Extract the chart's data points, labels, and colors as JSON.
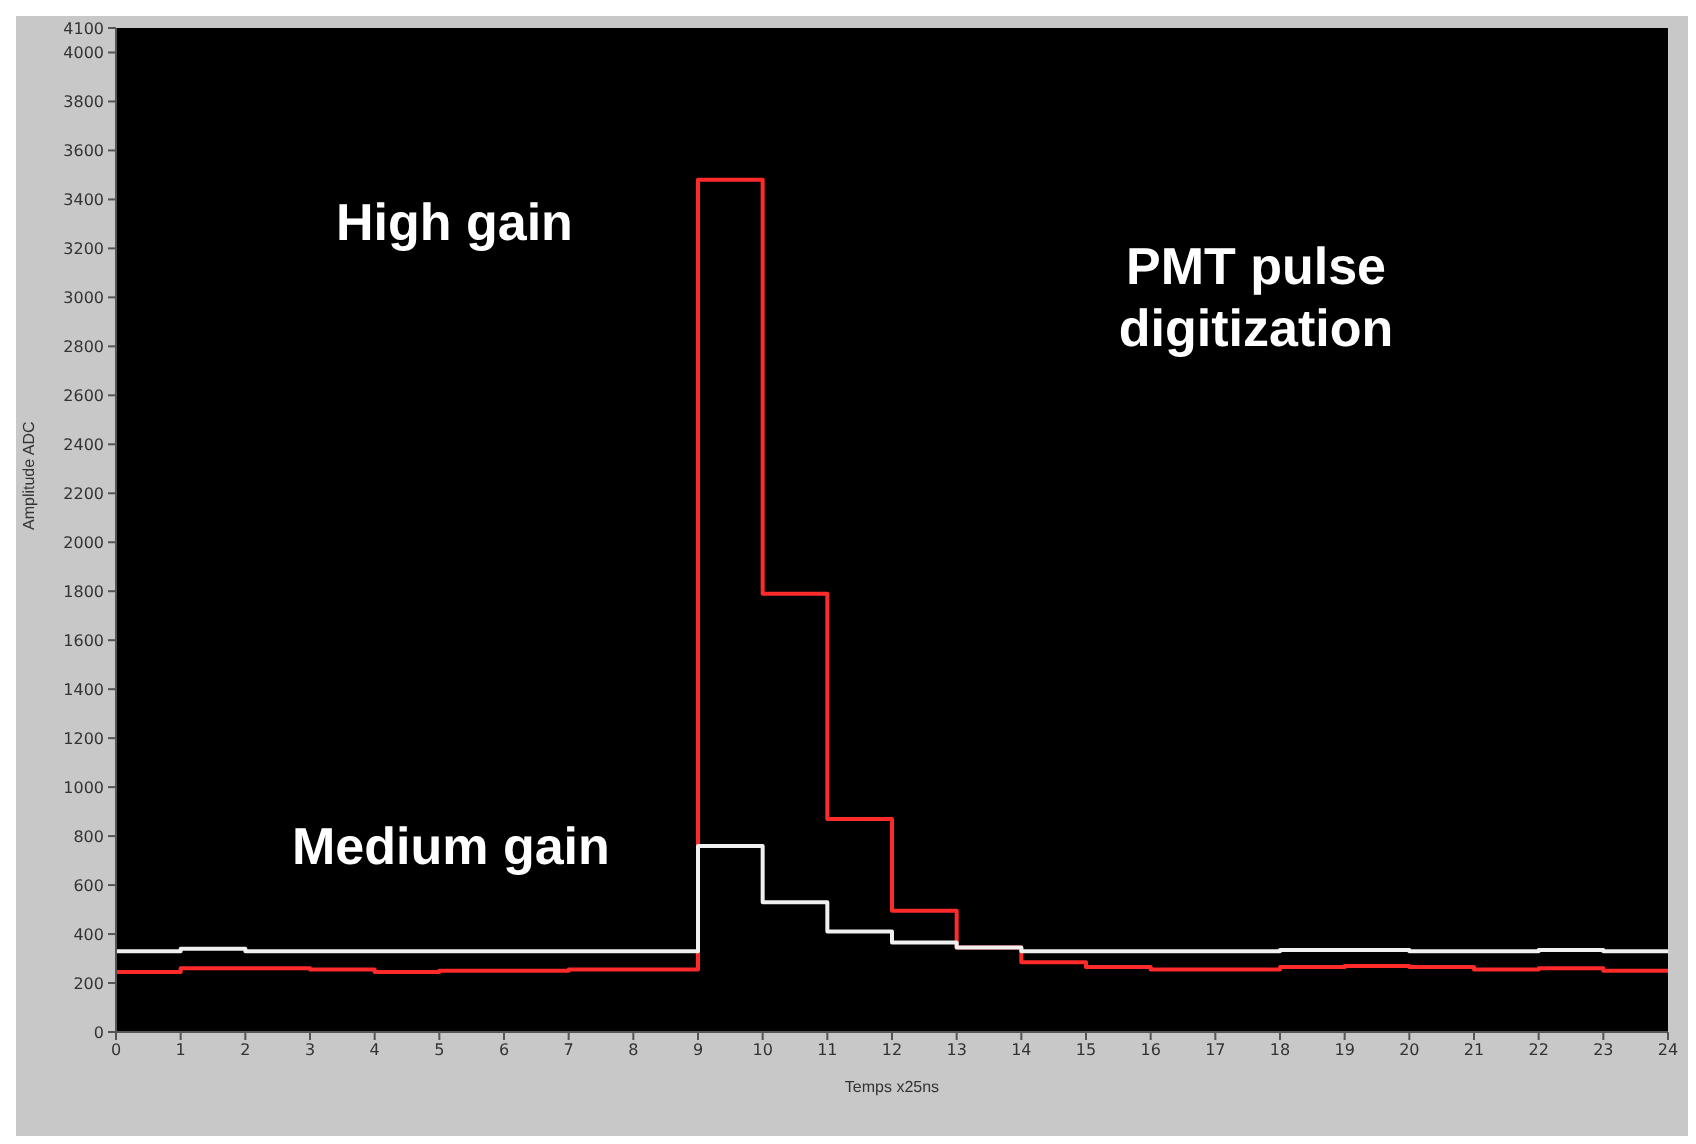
{
  "chart_data": {
    "type": "step",
    "xlabel": "Temps x25ns",
    "ylabel": "Amplitude ADC",
    "x": [
      0,
      1,
      2,
      3,
      4,
      5,
      6,
      7,
      8,
      9,
      10,
      11,
      12,
      13,
      14,
      15,
      16,
      17,
      18,
      19,
      20,
      21,
      22,
      23,
      24
    ],
    "series": [
      {
        "name": "High gain",
        "color": "#ff2a2a",
        "values": [
          245,
          260,
          260,
          255,
          245,
          250,
          250,
          255,
          255,
          3480,
          1790,
          870,
          495,
          345,
          285,
          265,
          255,
          255,
          265,
          270,
          265,
          255,
          260,
          250,
          250
        ]
      },
      {
        "name": "Medium gain",
        "color": "#f0f0f0",
        "values": [
          330,
          340,
          330,
          330,
          330,
          330,
          330,
          330,
          330,
          760,
          530,
          410,
          365,
          345,
          330,
          330,
          330,
          330,
          335,
          335,
          330,
          330,
          335,
          330,
          330
        ]
      }
    ],
    "annotations": [
      "PMT pulse digitization"
    ],
    "xlim": [
      0,
      24
    ],
    "xticks": [
      0,
      1,
      2,
      3,
      4,
      5,
      6,
      7,
      8,
      9,
      10,
      11,
      12,
      13,
      14,
      15,
      16,
      17,
      18,
      19,
      20,
      21,
      22,
      23,
      24
    ],
    "ylim": [
      0,
      4100
    ],
    "yticks": [
      0,
      200,
      400,
      600,
      800,
      1000,
      1200,
      1400,
      1600,
      1800,
      2000,
      2200,
      2400,
      2600,
      2800,
      3000,
      3200,
      3400,
      3600,
      3800,
      4000,
      4100
    ],
    "grid": false,
    "legend": false,
    "marker": "none",
    "line_style": "solid"
  }
}
